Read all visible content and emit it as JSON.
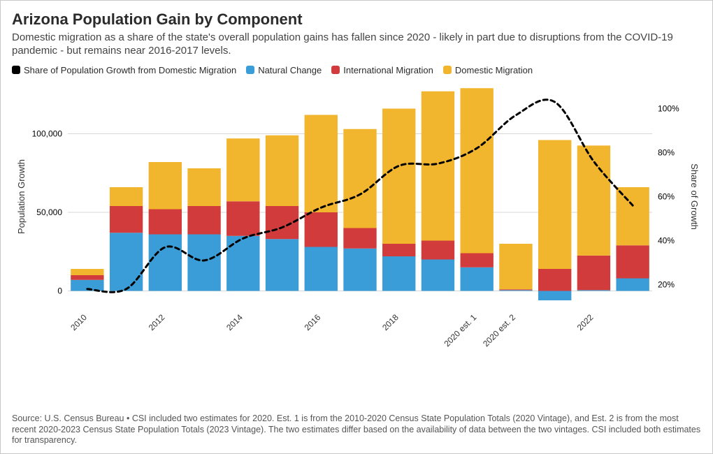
{
  "title": "Arizona Population Gain by Component",
  "subtitle": "Domestic migration as a share of the state's overall population gains has fallen since 2020 - likely in part due to disruptions from the COVID-19 pandemic - but remains near 2016-2017 levels.",
  "legend": {
    "items": [
      {
        "label": "Share of Population Growth from Domestic Migration",
        "color": "#000000"
      },
      {
        "label": "Natural Change",
        "color": "#3a9dd8"
      },
      {
        "label": "International Migration",
        "color": "#d13b3b"
      },
      {
        "label": "Domestic Migration",
        "color": "#f2b52e"
      }
    ]
  },
  "source": "Source: U.S. Census Bureau • CSI included two estimates for 2020. Est. 1 is from the 2010-2020 Census State Population Totals (2020 Vintage), and Est. 2 is from the most recent 2020-2023 Census State Population Totals (2023 Vintage). The two estimates differ based on the availability of data between the two vintages. CSI included both estimates for transparency.",
  "chart": {
    "type": "stacked-bar-with-line",
    "background_color": "#ffffff",
    "grid_color": "#d7d7d7",
    "bar_width": 0.85,
    "categories": [
      "2010",
      "2011",
      "2012",
      "2013",
      "2014",
      "2015",
      "2016",
      "2017",
      "2018",
      "2019",
      "2020 est. 1",
      "2020 est. 2",
      "2021",
      "2022",
      "2023"
    ],
    "x_tick_labels": [
      "2010",
      "",
      "2012",
      "",
      "2014",
      "",
      "2016",
      "",
      "2018",
      "",
      "2020 est. 1",
      "2020 est. 2",
      "",
      "2022",
      ""
    ],
    "x_label_rotation": -45,
    "series": [
      {
        "key": "natural",
        "label": "Natural Change",
        "color": "#3a9dd8",
        "values": [
          7000,
          37000,
          36000,
          36000,
          35000,
          33000,
          28000,
          27000,
          22000,
          20000,
          15000,
          500,
          -6000,
          500,
          8000
        ]
      },
      {
        "key": "intl",
        "label": "International Migration",
        "color": "#d13b3b",
        "values": [
          3000,
          17000,
          16000,
          18000,
          22000,
          21000,
          22000,
          13000,
          8000,
          12000,
          9000,
          500,
          14000,
          22000,
          21000
        ]
      },
      {
        "key": "domestic",
        "label": "Domestic Migration",
        "color": "#f2b52e",
        "values": [
          4000,
          12000,
          30000,
          24000,
          40000,
          45000,
          62000,
          63000,
          86000,
          95000,
          105000,
          29000,
          82000,
          70000,
          37000
        ]
      }
    ],
    "line": {
      "label": "Share of Population Growth from Domestic Migration",
      "color": "#000000",
      "dash": "6,5",
      "width": 3,
      "values_pct": [
        18,
        18,
        37,
        31,
        41,
        46,
        55,
        61,
        74,
        75,
        82,
        97,
        103,
        76,
        56
      ]
    },
    "y_left": {
      "label": "Population Growth",
      "min": -10000,
      "max": 130000,
      "ticks": [
        0,
        50000,
        100000
      ],
      "tick_labels": [
        "0",
        "50,000",
        "100,000"
      ]
    },
    "y_right": {
      "label": "Share of Growth",
      "min": 10,
      "max": 110,
      "ticks": [
        20,
        40,
        60,
        80,
        100
      ],
      "tick_labels": [
        "20%",
        "40%",
        "60%",
        "80%",
        "100%"
      ]
    },
    "label_fontsize": 13,
    "tick_fontsize": 12
  }
}
